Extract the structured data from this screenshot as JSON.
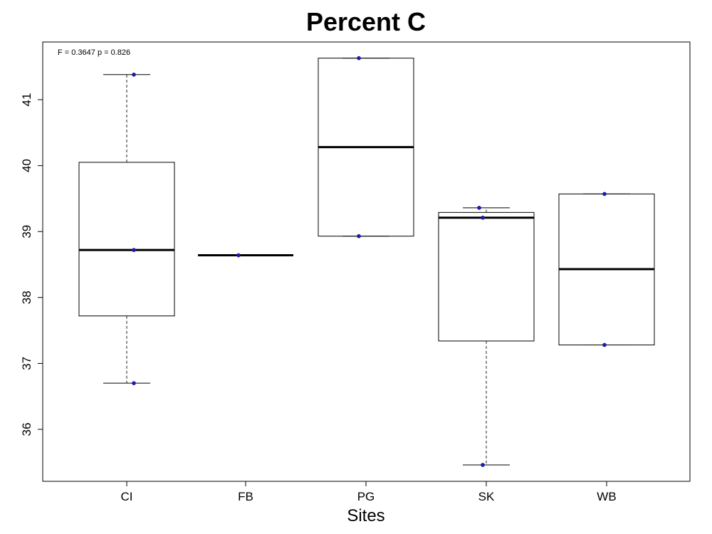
{
  "chart_data": {
    "type": "box",
    "title": "Percent C",
    "xlabel": "Sites",
    "ylabel": "",
    "ylim": [
      35.2,
      41.85
    ],
    "yticks": [
      36,
      37,
      38,
      39,
      40,
      41
    ],
    "annotation": "F = 0.3647 p = 0.826",
    "categories": [
      "CI",
      "FB",
      "PG",
      "SK",
      "WB"
    ],
    "boxes": [
      {
        "category": "CI",
        "whisker_low": 36.7,
        "q1": 37.72,
        "median": 38.72,
        "q3": 40.05,
        "whisker_high": 41.38
      },
      {
        "category": "FB",
        "whisker_low": 38.64,
        "q1": 38.64,
        "median": 38.64,
        "q3": 38.64,
        "whisker_high": 38.64
      },
      {
        "category": "PG",
        "whisker_low": 38.93,
        "q1": 38.93,
        "median": 40.28,
        "q3": 41.63,
        "whisker_high": 41.63
      },
      {
        "category": "SK",
        "whisker_low": 35.46,
        "q1": 37.34,
        "median": 39.21,
        "q3": 39.29,
        "whisker_high": 39.36
      },
      {
        "category": "WB",
        "whisker_low": 37.28,
        "q1": 37.28,
        "median": 38.43,
        "q3": 39.57,
        "whisker_high": 39.57
      }
    ],
    "points": [
      {
        "category": "CI",
        "values": [
          41.38,
          38.72,
          36.7
        ]
      },
      {
        "category": "FB",
        "values": [
          38.64
        ]
      },
      {
        "category": "PG",
        "values": [
          41.63,
          38.93
        ]
      },
      {
        "category": "SK",
        "values": [
          39.36,
          39.21,
          35.46
        ]
      },
      {
        "category": "WB",
        "values": [
          39.57,
          37.28
        ]
      }
    ],
    "point_color": "#1a1acc",
    "grid": false,
    "legend": "none"
  }
}
